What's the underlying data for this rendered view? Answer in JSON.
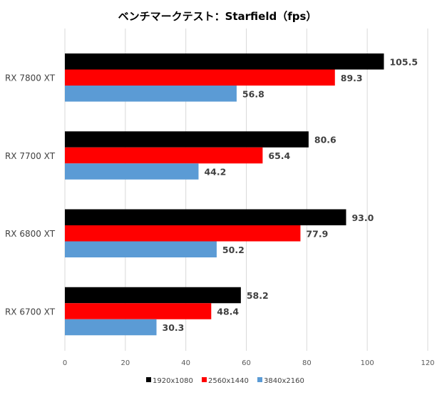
{
  "chart_data": {
    "type": "bar",
    "orientation": "horizontal",
    "title": "ベンチマークテスト：Starfield（fps）",
    "categories": [
      "RX 7800 XT",
      "RX 7700 XT",
      "RX 6800 XT",
      "RX 6700 XT"
    ],
    "series": [
      {
        "name": "1920x1080",
        "color": "#000000",
        "values": [
          105.5,
          80.6,
          93.0,
          58.2
        ],
        "labels": [
          "105.5",
          "80.6",
          "93.0",
          "58.2"
        ]
      },
      {
        "name": "2560x1440",
        "color": "#FF0000",
        "values": [
          89.3,
          65.4,
          77.9,
          48.4
        ],
        "labels": [
          "89.3",
          "65.4",
          "77.9",
          "48.4"
        ]
      },
      {
        "name": "3840x2160",
        "color": "#5B9BD5",
        "values": [
          56.8,
          44.2,
          50.2,
          30.3
        ],
        "labels": [
          "56.8",
          "44.2",
          "50.2",
          "30.3"
        ]
      }
    ],
    "xlim": [
      0,
      120
    ],
    "xticks": [
      "0",
      "20",
      "40",
      "60",
      "80",
      "100",
      "120"
    ],
    "xlabel": "",
    "ylabel": "",
    "grid": true,
    "legend": "bottom"
  }
}
